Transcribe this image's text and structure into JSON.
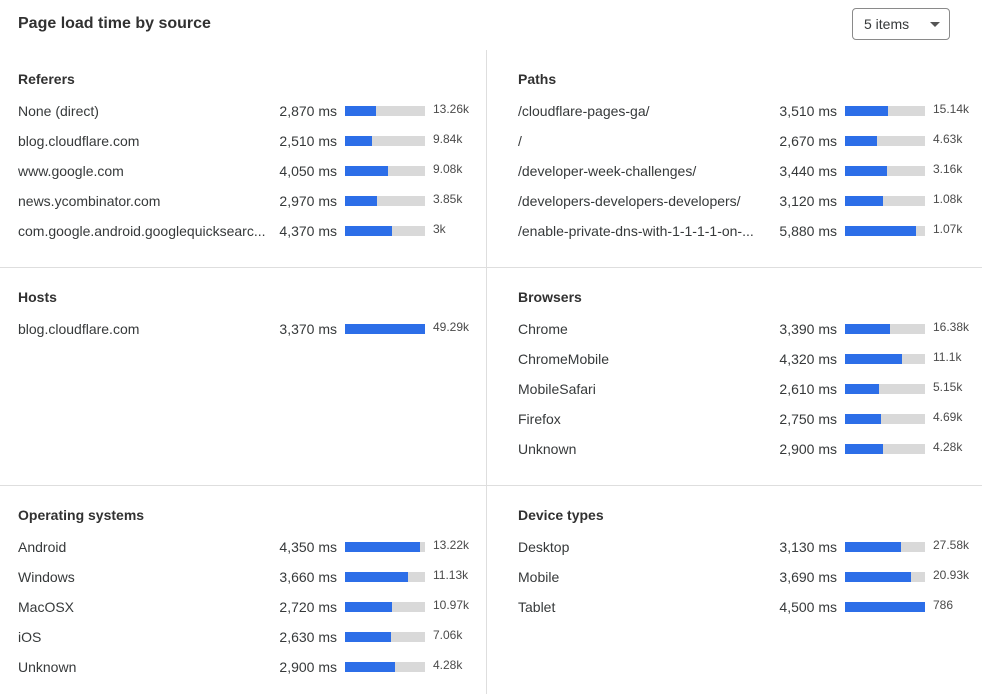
{
  "header": {
    "title": "Page load time by source",
    "items_select": "5 items"
  },
  "colors": {
    "bar_fill": "#2c6ee8",
    "bar_track": "#d9d9d9"
  },
  "panels": [
    {
      "title": "Referers",
      "rows": [
        {
          "label": "None (direct)",
          "ms": "2,870 ms",
          "fill": 0.39,
          "count": "13.26k"
        },
        {
          "label": "blog.cloudflare.com",
          "ms": "2,510 ms",
          "fill": 0.34,
          "count": "9.84k"
        },
        {
          "label": "www.google.com",
          "ms": "4,050 ms",
          "fill": 0.54,
          "count": "9.08k"
        },
        {
          "label": "news.ycombinator.com",
          "ms": "2,970 ms",
          "fill": 0.4,
          "count": "3.85k"
        },
        {
          "label": "com.google.android.googlequicksearc...",
          "ms": "4,370 ms",
          "fill": 0.59,
          "count": "3k"
        }
      ]
    },
    {
      "title": "Paths",
      "rows": [
        {
          "label": "/cloudflare-pages-ga/",
          "ms": "3,510 ms",
          "fill": 0.54,
          "count": "15.14k"
        },
        {
          "label": "/",
          "ms": "2,670 ms",
          "fill": 0.4,
          "count": "4.63k"
        },
        {
          "label": "/developer-week-challenges/",
          "ms": "3,440 ms",
          "fill": 0.52,
          "count": "3.16k"
        },
        {
          "label": "/developers-developers-developers/",
          "ms": "3,120 ms",
          "fill": 0.47,
          "count": "1.08k"
        },
        {
          "label": "/enable-private-dns-with-1-1-1-1-on-...",
          "ms": "5,880 ms",
          "fill": 0.89,
          "count": "1.07k"
        }
      ]
    },
    {
      "title": "Hosts",
      "rows": [
        {
          "label": "blog.cloudflare.com",
          "ms": "3,370 ms",
          "fill": 1.0,
          "count": "49.29k"
        }
      ]
    },
    {
      "title": "Browsers",
      "rows": [
        {
          "label": "Chrome",
          "ms": "3,390 ms",
          "fill": 0.56,
          "count": "16.38k"
        },
        {
          "label": "ChromeMobile",
          "ms": "4,320 ms",
          "fill": 0.71,
          "count": "11.1k"
        },
        {
          "label": "MobileSafari",
          "ms": "2,610 ms",
          "fill": 0.43,
          "count": "5.15k"
        },
        {
          "label": "Firefox",
          "ms": "2,750 ms",
          "fill": 0.45,
          "count": "4.69k"
        },
        {
          "label": "Unknown",
          "ms": "2,900 ms",
          "fill": 0.48,
          "count": "4.28k"
        }
      ]
    },
    {
      "title": "Operating systems",
      "rows": [
        {
          "label": "Android",
          "ms": "4,350 ms",
          "fill": 0.94,
          "count": "13.22k"
        },
        {
          "label": "Windows",
          "ms": "3,660 ms",
          "fill": 0.79,
          "count": "11.13k"
        },
        {
          "label": "MacOSX",
          "ms": "2,720 ms",
          "fill": 0.59,
          "count": "10.97k"
        },
        {
          "label": "iOS",
          "ms": "2,630 ms",
          "fill": 0.57,
          "count": "7.06k"
        },
        {
          "label": "Unknown",
          "ms": "2,900 ms",
          "fill": 0.63,
          "count": "4.28k"
        }
      ]
    },
    {
      "title": "Device types",
      "rows": [
        {
          "label": "Desktop",
          "ms": "3,130 ms",
          "fill": 0.7,
          "count": "27.58k"
        },
        {
          "label": "Mobile",
          "ms": "3,690 ms",
          "fill": 0.83,
          "count": "20.93k"
        },
        {
          "label": "Tablet",
          "ms": "4,500 ms",
          "fill": 1.0,
          "count": "786"
        }
      ]
    }
  ]
}
